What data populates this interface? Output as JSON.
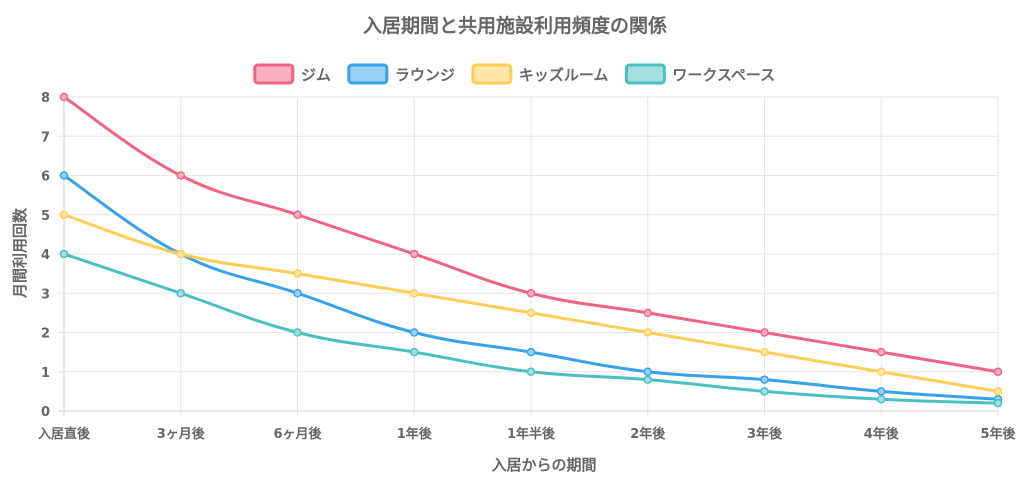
{
  "chart_data": {
    "type": "line",
    "title": "入居期間と共用施設利用頻度の関係",
    "xlabel": "入居からの期間",
    "ylabel": "月間利用回数",
    "categories": [
      "入居直後",
      "3ヶ月後",
      "6ヶ月後",
      "1年後",
      "1年半後",
      "2年後",
      "3年後",
      "4年後",
      "5年後"
    ],
    "ylim": [
      0,
      8
    ],
    "yticks": [
      "0",
      "1",
      "2",
      "3",
      "4",
      "5",
      "6",
      "7",
      "8"
    ],
    "grid": true,
    "legend_position": "top",
    "series": [
      {
        "name": "ジム",
        "color": "#f06384",
        "fill": "#fcb0c2",
        "values": [
          8,
          6,
          5,
          4,
          3,
          2.5,
          2,
          1.5,
          1
        ]
      },
      {
        "name": "ラウンジ",
        "color": "#36a2eb",
        "fill": "#9ad0f5",
        "values": [
          6,
          4,
          3,
          2,
          1.5,
          1,
          0.8,
          0.5,
          0.3
        ]
      },
      {
        "name": "キッズルーム",
        "color": "#ffce56",
        "fill": "#ffe6aa",
        "values": [
          5,
          4,
          3.5,
          3,
          2.5,
          2,
          1.5,
          1,
          0.5
        ]
      },
      {
        "name": "ワークスペース",
        "color": "#4bc0c0",
        "fill": "#a5dfdf",
        "values": [
          4,
          3,
          2,
          1.5,
          1,
          0.8,
          0.5,
          0.3,
          0.2
        ]
      }
    ]
  }
}
